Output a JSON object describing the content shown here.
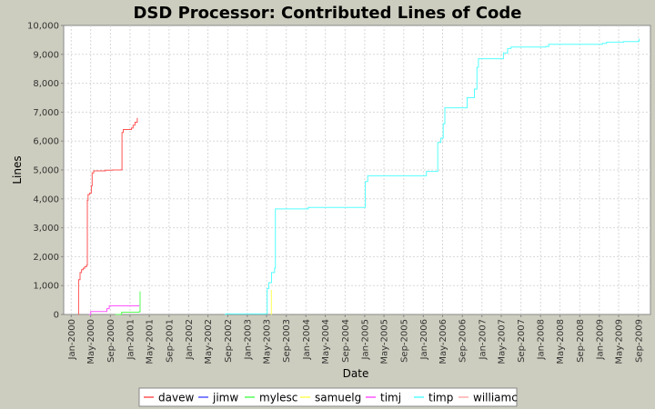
{
  "chart_data": {
    "type": "line",
    "title": "DSD Processor: Contributed Lines of Code",
    "xlabel": "Date",
    "ylabel": "Lines",
    "x_range": [
      "1999-11-15",
      "2009-11-15"
    ],
    "ylim": [
      0,
      10000
    ],
    "y_ticks": [
      {
        "value": 0,
        "label": "0"
      },
      {
        "value": 1000,
        "label": "1,000"
      },
      {
        "value": 2000,
        "label": "2,000"
      },
      {
        "value": 3000,
        "label": "3,000"
      },
      {
        "value": 4000,
        "label": "4,000"
      },
      {
        "value": 5000,
        "label": "5,000"
      },
      {
        "value": 6000,
        "label": "6,000"
      },
      {
        "value": 7000,
        "label": "7,000"
      },
      {
        "value": 8000,
        "label": "8,000"
      },
      {
        "value": 9000,
        "label": "9,000"
      },
      {
        "value": 10000,
        "label": "10,000"
      }
    ],
    "x_ticks": [
      {
        "date": "2000-01-01",
        "label": "Jan-2000"
      },
      {
        "date": "2000-05-01",
        "label": "May-2000"
      },
      {
        "date": "2000-09-01",
        "label": "Sep-2000"
      },
      {
        "date": "2001-01-01",
        "label": "Jan-2001"
      },
      {
        "date": "2001-05-01",
        "label": "May-2001"
      },
      {
        "date": "2001-09-01",
        "label": "Sep-2001"
      },
      {
        "date": "2002-01-01",
        "label": "Jan-2002"
      },
      {
        "date": "2002-05-01",
        "label": "May-2002"
      },
      {
        "date": "2002-09-01",
        "label": "Sep-2002"
      },
      {
        "date": "2003-01-01",
        "label": "Jan-2003"
      },
      {
        "date": "2003-05-01",
        "label": "May-2003"
      },
      {
        "date": "2003-09-01",
        "label": "Sep-2003"
      },
      {
        "date": "2004-01-01",
        "label": "Jan-2004"
      },
      {
        "date": "2004-05-01",
        "label": "May-2004"
      },
      {
        "date": "2004-09-01",
        "label": "Sep-2004"
      },
      {
        "date": "2005-01-01",
        "label": "Jan-2005"
      },
      {
        "date": "2005-05-01",
        "label": "May-2005"
      },
      {
        "date": "2005-09-01",
        "label": "Sep-2005"
      },
      {
        "date": "2006-01-01",
        "label": "Jan-2006"
      },
      {
        "date": "2006-05-01",
        "label": "May-2006"
      },
      {
        "date": "2006-09-01",
        "label": "Sep-2006"
      },
      {
        "date": "2007-01-01",
        "label": "Jan-2007"
      },
      {
        "date": "2007-05-01",
        "label": "May-2007"
      },
      {
        "date": "2007-09-01",
        "label": "Sep-2007"
      },
      {
        "date": "2008-01-01",
        "label": "Jan-2008"
      },
      {
        "date": "2008-05-01",
        "label": "May-2008"
      },
      {
        "date": "2008-09-01",
        "label": "Sep-2008"
      },
      {
        "date": "2009-01-01",
        "label": "Jan-2009"
      },
      {
        "date": "2009-05-01",
        "label": "May-2009"
      },
      {
        "date": "2009-09-01",
        "label": "Sep-2009"
      }
    ],
    "grid": true,
    "legend_position": "bottom",
    "series": [
      {
        "name": "davew",
        "color": "#ff5555",
        "points": [
          [
            "2000-02-15",
            0
          ],
          [
            "2000-02-16",
            1200
          ],
          [
            "2000-02-25",
            1450
          ],
          [
            "2000-03-05",
            1550
          ],
          [
            "2000-03-15",
            1600
          ],
          [
            "2000-03-25",
            1650
          ],
          [
            "2000-04-05",
            1700
          ],
          [
            "2000-04-10",
            3950
          ],
          [
            "2000-04-15",
            4150
          ],
          [
            "2000-04-25",
            4200
          ],
          [
            "2000-05-05",
            4450
          ],
          [
            "2000-05-10",
            4900
          ],
          [
            "2000-05-20",
            4970
          ],
          [
            "2000-08-01",
            4990
          ],
          [
            "2000-09-15",
            5000
          ],
          [
            "2000-11-10",
            5010
          ],
          [
            "2000-11-12",
            6300
          ],
          [
            "2000-11-20",
            6400
          ],
          [
            "2001-01-10",
            6450
          ],
          [
            "2001-01-20",
            6550
          ],
          [
            "2001-02-01",
            6650
          ],
          [
            "2001-02-15",
            6800
          ]
        ]
      },
      {
        "name": "jimw",
        "color": "#5555ff",
        "points": []
      },
      {
        "name": "mylesc",
        "color": "#55ff55",
        "points": [
          [
            "2000-10-01",
            0
          ],
          [
            "2000-11-05",
            10
          ],
          [
            "2000-11-10",
            80
          ],
          [
            "2001-02-28",
            100
          ],
          [
            "2001-03-05",
            800
          ]
        ]
      },
      {
        "name": "samuelg",
        "color": "#ffff55",
        "points": [
          [
            "2003-05-30",
            0
          ],
          [
            "2003-05-31",
            850
          ]
        ]
      },
      {
        "name": "timj",
        "color": "#ff55ff",
        "points": [
          [
            "2000-04-20",
            0
          ],
          [
            "2000-05-01",
            100
          ],
          [
            "2000-08-10",
            200
          ],
          [
            "2000-08-25",
            300
          ],
          [
            "2001-02-28",
            300
          ]
        ]
      },
      {
        "name": "timp",
        "color": "#55ffff",
        "points": [
          [
            "2002-08-15",
            0
          ],
          [
            "2002-08-20",
            20
          ],
          [
            "2003-05-01",
            30
          ],
          [
            "2003-05-05",
            900
          ],
          [
            "2003-05-15",
            1100
          ],
          [
            "2003-06-01",
            1450
          ],
          [
            "2003-06-20",
            1600
          ],
          [
            "2003-06-25",
            3650
          ],
          [
            "2004-01-15",
            3700
          ],
          [
            "2004-12-20",
            3700
          ],
          [
            "2005-01-05",
            4600
          ],
          [
            "2005-01-20",
            4800
          ],
          [
            "2006-01-01",
            4800
          ],
          [
            "2006-01-20",
            4950
          ],
          [
            "2006-04-01",
            5950
          ],
          [
            "2006-04-20",
            6100
          ],
          [
            "2006-05-05",
            6600
          ],
          [
            "2006-05-15",
            7150
          ],
          [
            "2006-09-20",
            7150
          ],
          [
            "2006-10-01",
            7500
          ],
          [
            "2006-11-15",
            7800
          ],
          [
            "2006-12-01",
            8550
          ],
          [
            "2006-12-10",
            8850
          ],
          [
            "2007-05-01",
            8850
          ],
          [
            "2007-05-15",
            9050
          ],
          [
            "2007-06-10",
            9200
          ],
          [
            "2007-07-01",
            9250
          ],
          [
            "2008-02-01",
            9270
          ],
          [
            "2008-02-20",
            9350
          ],
          [
            "2009-01-20",
            9380
          ],
          [
            "2009-02-15",
            9420
          ],
          [
            "2009-06-01",
            9440
          ],
          [
            "2009-09-01",
            9450
          ],
          [
            "2009-09-05",
            9540
          ]
        ]
      },
      {
        "name": "williamc",
        "color": "#ffaaaa",
        "points": []
      }
    ]
  }
}
